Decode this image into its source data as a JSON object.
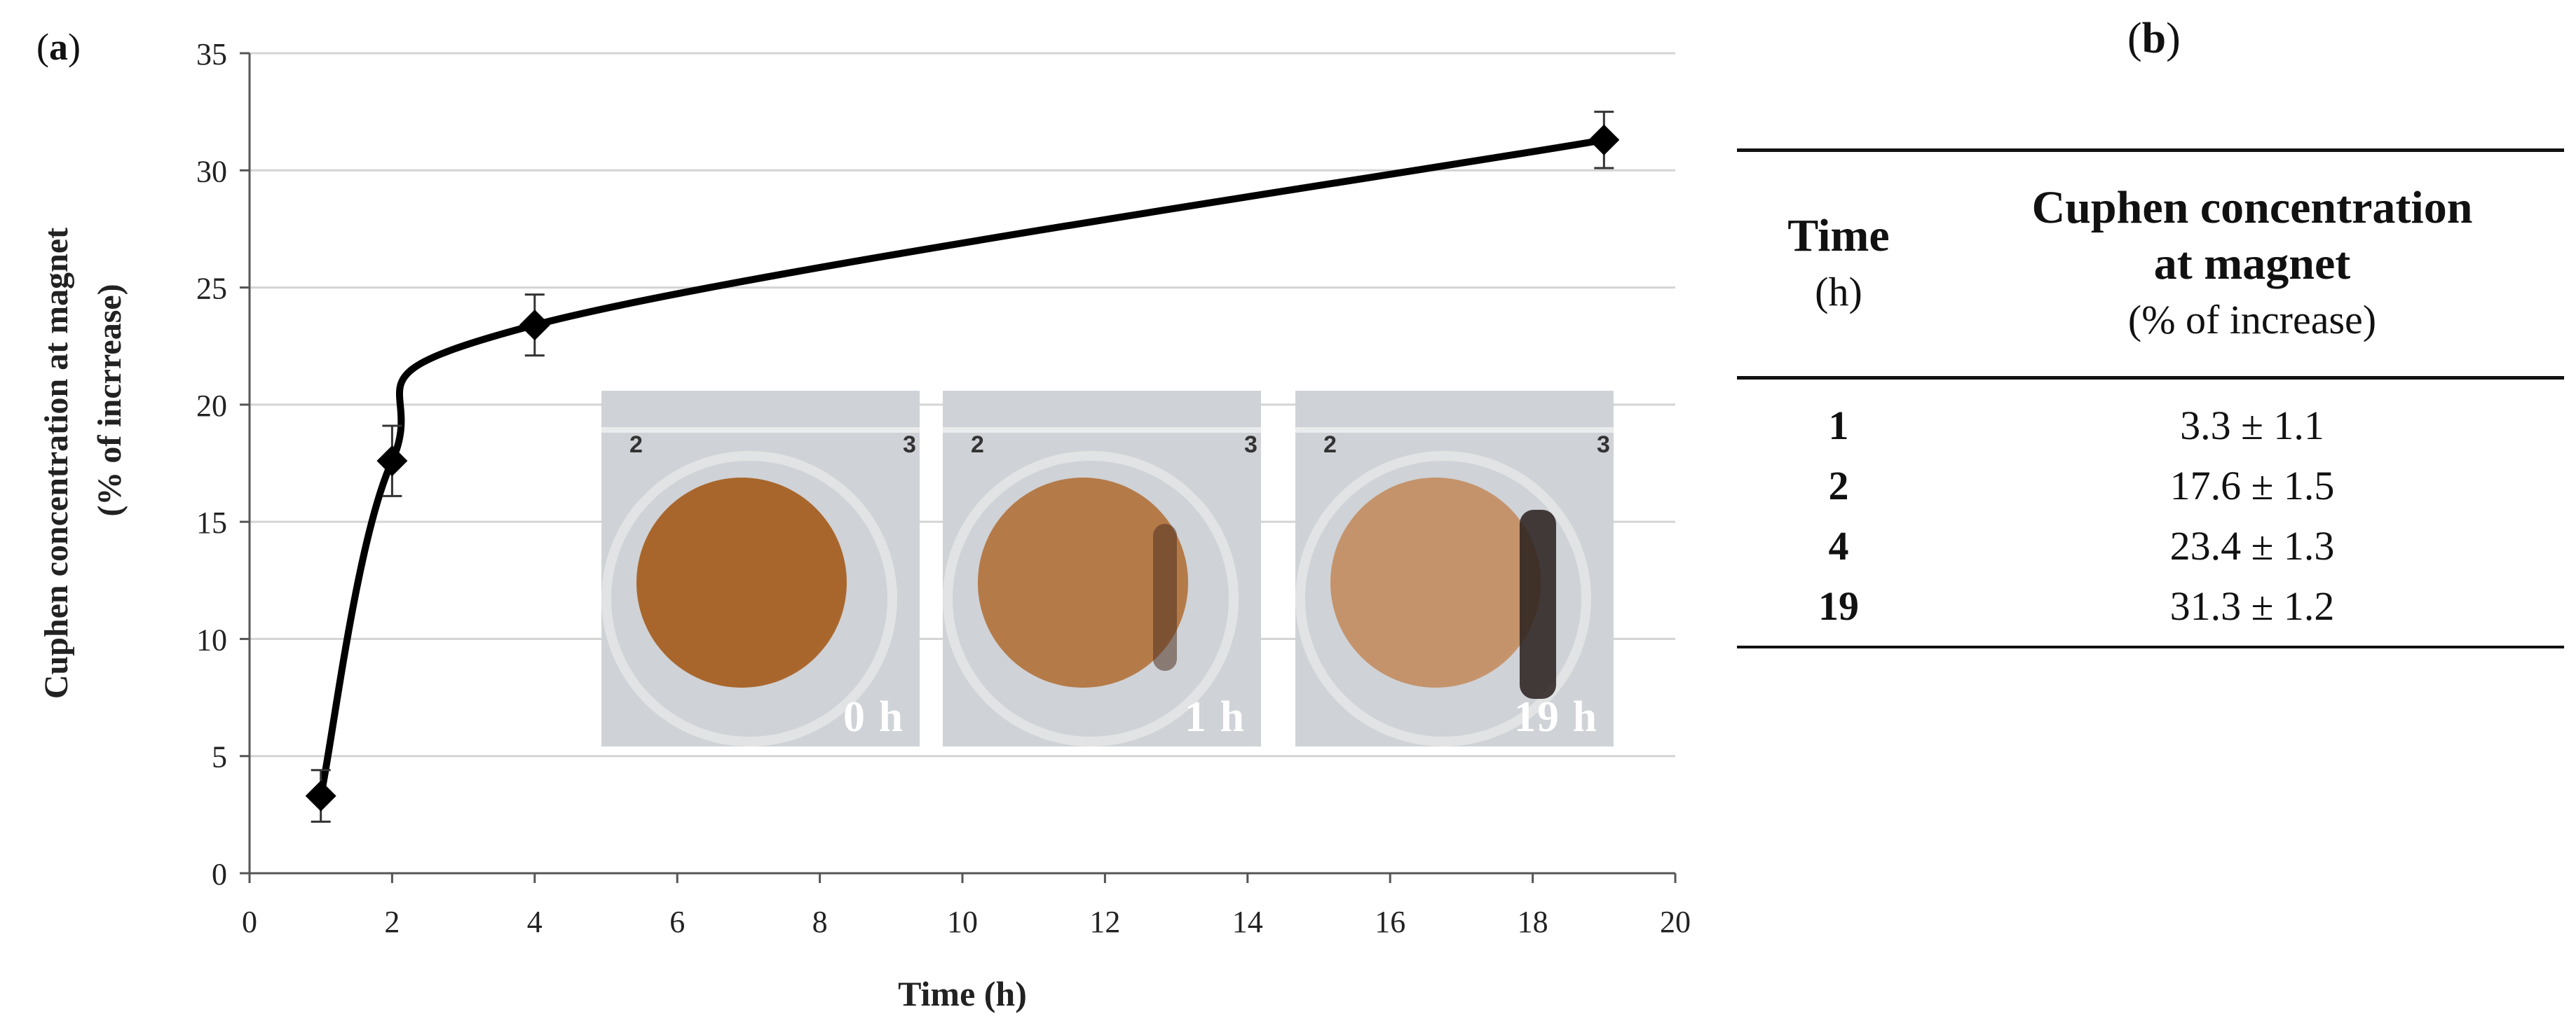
{
  "panel_labels": {
    "a": "a",
    "b": "b"
  },
  "chart_data": {
    "type": "line",
    "xlabel": "Time (h)",
    "ylabel_line1": "Cuphen concentration at magnet",
    "ylabel_line2": "(% of incrrease)",
    "xlim": [
      0,
      20
    ],
    "ylim": [
      0,
      35
    ],
    "xticks": [
      0,
      2,
      4,
      6,
      8,
      10,
      12,
      14,
      16,
      18,
      20
    ],
    "yticks": [
      0,
      5,
      10,
      15,
      20,
      25,
      30,
      35
    ],
    "grid": "horizontal",
    "series": [
      {
        "name": "Cuphen concentration at magnet",
        "color": "#000000",
        "marker": "diamond",
        "x": [
          1,
          2,
          4,
          19
        ],
        "y": [
          3.3,
          17.6,
          23.4,
          31.3
        ],
        "error": [
          1.1,
          1.5,
          1.3,
          1.2
        ]
      }
    ]
  },
  "photos": [
    {
      "caption": "0 h",
      "well_left": "2",
      "well_right": "3",
      "liquid": "#a9662c",
      "edge": "#b87a45"
    },
    {
      "caption": "1 h",
      "well_left": "2",
      "well_right": "3",
      "liquid": "#b47a48",
      "edge": "#c08a5a"
    },
    {
      "caption": "19 h",
      "well_left": "2",
      "well_right": "3",
      "liquid": "#c4936b",
      "edge": "#cfa283"
    }
  ],
  "table": {
    "col1_header_line1": "Time",
    "col1_header_line2": "(h)",
    "col2_header_line1": "Cuphen concentration",
    "col2_header_line2": "at magnet",
    "col2_header_line3": "(% of increase)",
    "rows": [
      {
        "time": "1",
        "value": "3.3 ± 1.1"
      },
      {
        "time": "2",
        "value": "17.6 ± 1.5"
      },
      {
        "time": "4",
        "value": "23.4 ± 1.3"
      },
      {
        "time": "19",
        "value": "31.3 ± 1.2"
      }
    ]
  }
}
